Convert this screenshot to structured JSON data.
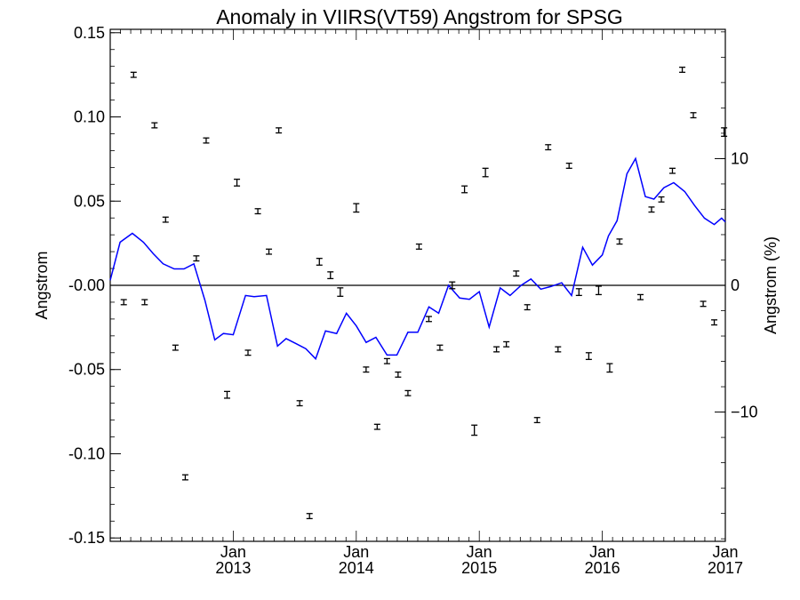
{
  "chart_data": {
    "type": "scatter",
    "title": "Anomaly in VIIRS(VT59) Angstrom for SPSG",
    "ylabel": "Angstrom",
    "ylabel_right": "Angstrom (%)",
    "xlabel": "",
    "xlim": [
      2012.0,
      2017.0
    ],
    "ylim": [
      -0.152,
      0.152
    ],
    "ylim_right": [
      -20.2,
      20.2
    ],
    "x_ticks": [
      {
        "x": 2013.0,
        "month": "Jan",
        "year": "2013"
      },
      {
        "x": 2014.0,
        "month": "Jan",
        "year": "2014"
      },
      {
        "x": 2015.0,
        "month": "Jan",
        "year": "2015"
      },
      {
        "x": 2016.0,
        "month": "Jan",
        "year": "2016"
      },
      {
        "x": 2017.0,
        "month": "Jan",
        "year": "2017"
      }
    ],
    "y_ticks": [
      {
        "v": 0.15,
        "label": "0.15"
      },
      {
        "v": 0.1,
        "label": "0.10"
      },
      {
        "v": 0.05,
        "label": "0.05"
      },
      {
        "v": 0.0,
        "label": "-0.00"
      },
      {
        "v": -0.05,
        "label": "-0.05"
      },
      {
        "v": -0.1,
        "label": "-0.10"
      },
      {
        "v": -0.15,
        "label": "-0.15"
      }
    ],
    "y_ticks_right": [
      {
        "v": 10,
        "label": "10"
      },
      {
        "v": 0,
        "label": "0"
      },
      {
        "v": -10,
        "label": "−10"
      }
    ],
    "zero_line": true,
    "grid": false,
    "series": [
      {
        "kind": "errorbar",
        "color": "#000000",
        "points": [
          {
            "x": 2012.11,
            "y": -0.01,
            "err": 0.0015
          },
          {
            "x": 2012.19,
            "y": 0.125,
            "err": 0.0015
          },
          {
            "x": 2012.28,
            "y": -0.01,
            "err": 0.0015
          },
          {
            "x": 2012.36,
            "y": 0.095,
            "err": 0.0015
          },
          {
            "x": 2012.45,
            "y": 0.039,
            "err": 0.0015
          },
          {
            "x": 2012.53,
            "y": -0.037,
            "err": 0.0015
          },
          {
            "x": 2012.61,
            "y": -0.114,
            "err": 0.0015
          },
          {
            "x": 2012.7,
            "y": 0.016,
            "err": 0.0015
          },
          {
            "x": 2012.78,
            "y": 0.086,
            "err": 0.0015
          },
          {
            "x": 2012.95,
            "y": -0.065,
            "err": 0.002
          },
          {
            "x": 2013.03,
            "y": 0.061,
            "err": 0.002
          },
          {
            "x": 2013.12,
            "y": -0.04,
            "err": 0.0015
          },
          {
            "x": 2013.2,
            "y": 0.044,
            "err": 0.0015
          },
          {
            "x": 2013.29,
            "y": 0.02,
            "err": 0.0015
          },
          {
            "x": 2013.37,
            "y": 0.092,
            "err": 0.0015
          },
          {
            "x": 2013.54,
            "y": -0.07,
            "err": 0.0015
          },
          {
            "x": 2013.62,
            "y": -0.137,
            "err": 0.0015
          },
          {
            "x": 2013.7,
            "y": 0.014,
            "err": 0.002
          },
          {
            "x": 2013.79,
            "y": 0.006,
            "err": 0.002
          },
          {
            "x": 2013.87,
            "y": -0.004,
            "err": 0.0025
          },
          {
            "x": 2014.0,
            "y": 0.046,
            "err": 0.0025
          },
          {
            "x": 2014.08,
            "y": -0.05,
            "err": 0.0015
          },
          {
            "x": 2014.17,
            "y": -0.084,
            "err": 0.0015
          },
          {
            "x": 2014.25,
            "y": -0.045,
            "err": 0.0015
          },
          {
            "x": 2014.34,
            "y": -0.053,
            "err": 0.0015
          },
          {
            "x": 2014.42,
            "y": -0.064,
            "err": 0.0015
          },
          {
            "x": 2014.51,
            "y": 0.023,
            "err": 0.0015
          },
          {
            "x": 2014.59,
            "y": -0.02,
            "err": 0.0015
          },
          {
            "x": 2014.68,
            "y": -0.037,
            "err": 0.0015
          },
          {
            "x": 2014.78,
            "y": 0.0,
            "err": 0.002
          },
          {
            "x": 2014.88,
            "y": 0.057,
            "err": 0.002
          },
          {
            "x": 2014.96,
            "y": -0.086,
            "err": 0.003
          },
          {
            "x": 2015.05,
            "y": 0.067,
            "err": 0.0025
          },
          {
            "x": 2015.14,
            "y": -0.038,
            "err": 0.0015
          },
          {
            "x": 2015.22,
            "y": -0.035,
            "err": 0.0015
          },
          {
            "x": 2015.3,
            "y": 0.007,
            "err": 0.0015
          },
          {
            "x": 2015.39,
            "y": -0.013,
            "err": 0.0015
          },
          {
            "x": 2015.47,
            "y": -0.08,
            "err": 0.0015
          },
          {
            "x": 2015.56,
            "y": 0.082,
            "err": 0.0015
          },
          {
            "x": 2015.64,
            "y": -0.038,
            "err": 0.0015
          },
          {
            "x": 2015.73,
            "y": 0.071,
            "err": 0.0015
          },
          {
            "x": 2015.81,
            "y": -0.004,
            "err": 0.002
          },
          {
            "x": 2015.89,
            "y": -0.042,
            "err": 0.002
          },
          {
            "x": 2015.97,
            "y": -0.003,
            "err": 0.0025
          },
          {
            "x": 2016.06,
            "y": -0.049,
            "err": 0.0025
          },
          {
            "x": 2016.14,
            "y": 0.026,
            "err": 0.0015
          },
          {
            "x": 2016.31,
            "y": -0.007,
            "err": 0.0015
          },
          {
            "x": 2016.4,
            "y": 0.045,
            "err": 0.0015
          },
          {
            "x": 2016.48,
            "y": 0.051,
            "err": 0.0015
          },
          {
            "x": 2016.57,
            "y": 0.068,
            "err": 0.0015
          },
          {
            "x": 2016.65,
            "y": 0.128,
            "err": 0.0015
          },
          {
            "x": 2016.74,
            "y": 0.101,
            "err": 0.0015
          },
          {
            "x": 2016.82,
            "y": -0.011,
            "err": 0.0015
          },
          {
            "x": 2016.91,
            "y": -0.022,
            "err": 0.0015
          },
          {
            "x": 2016.99,
            "y": 0.091,
            "err": 0.0025
          }
        ]
      },
      {
        "kind": "line",
        "color": "#0000ff",
        "x": [
          2012.0,
          2012.08,
          2012.18,
          2012.27,
          2012.35,
          2012.43,
          2012.52,
          2012.6,
          2012.68,
          2012.77,
          2012.85,
          2012.92,
          2013.0,
          2013.1,
          2013.17,
          2013.27,
          2013.36,
          2013.43,
          2013.51,
          2013.59,
          2013.67,
          2013.75,
          2013.84,
          2013.92,
          2014.0,
          2014.08,
          2014.16,
          2014.25,
          2014.33,
          2014.42,
          2014.5,
          2014.59,
          2014.67,
          2014.75,
          2014.84,
          2014.92,
          2015.0,
          2015.08,
          2015.17,
          2015.25,
          2015.34,
          2015.42,
          2015.5,
          2015.58,
          2015.67,
          2015.75,
          2015.84,
          2015.92,
          2016.0,
          2016.05,
          2016.12,
          2016.2,
          2016.27,
          2016.35,
          2016.42,
          2016.5,
          2016.58,
          2016.67,
          2016.75,
          2016.83,
          2016.91,
          2016.97,
          2017.0
        ],
        "y": [
          0.4,
          3.4,
          4.1,
          3.4,
          2.5,
          1.7,
          1.3,
          1.3,
          1.7,
          -1.2,
          -4.3,
          -3.8,
          -3.9,
          -0.8,
          -0.9,
          -0.8,
          -4.8,
          -4.2,
          -4.6,
          -5.0,
          -5.8,
          -3.6,
          -3.8,
          -2.2,
          -3.2,
          -4.5,
          -4.1,
          -5.5,
          -5.5,
          -3.7,
          -3.7,
          -1.7,
          -2.2,
          0.0,
          -1.0,
          -1.1,
          -0.5,
          -3.3,
          -0.2,
          -0.8,
          0.0,
          0.5,
          -0.3,
          -0.1,
          0.2,
          -0.8,
          3.0,
          1.6,
          2.4,
          3.9,
          5.1,
          8.8,
          10.0,
          7.0,
          6.8,
          7.7,
          8.1,
          7.4,
          6.3,
          5.3,
          4.8,
          5.3,
          5.0
        ]
      }
    ]
  }
}
